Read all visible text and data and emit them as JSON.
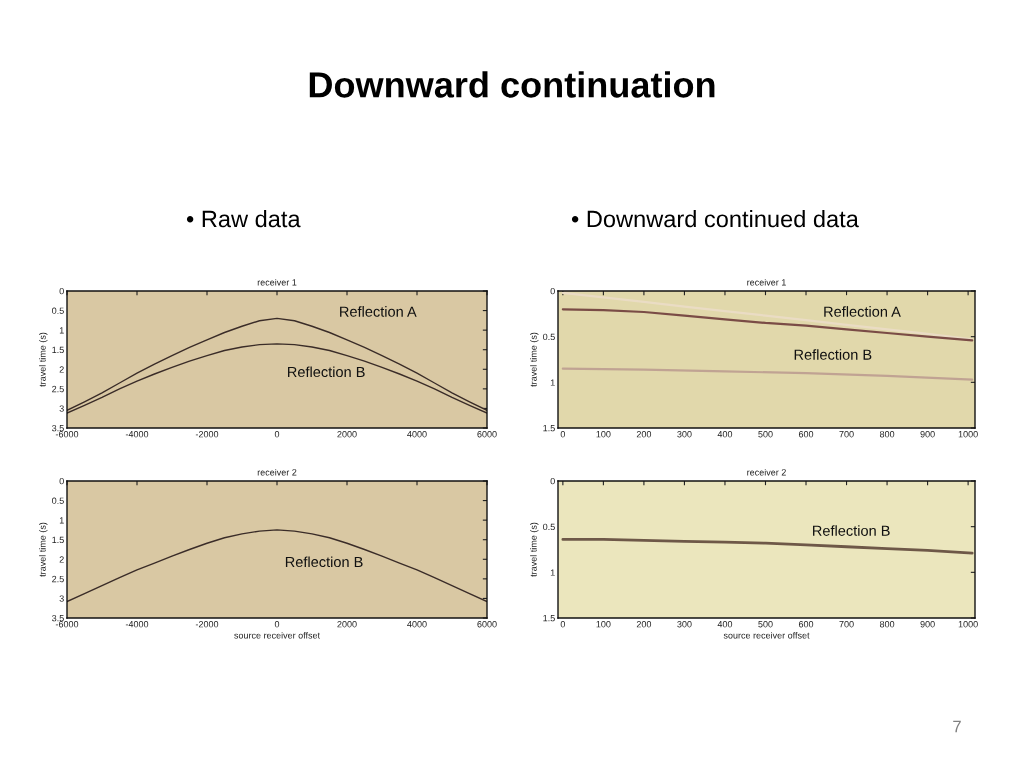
{
  "chart_data": [
    {
      "type": "line",
      "title": "receiver 1",
      "ylabel": "travel time (s)",
      "xlim": [
        -6000,
        6000
      ],
      "xticks": [
        -6000,
        -4000,
        -2000,
        0,
        2000,
        4000,
        6000
      ],
      "ylim": [
        3.5,
        0
      ],
      "yticks": [
        0,
        0.5,
        1,
        1.5,
        2,
        2.5,
        3,
        3.5
      ],
      "series": [
        {
          "name": "Reflection A",
          "color": "#3a2c28",
          "x": [
            -6000,
            -5500,
            -5000,
            -4500,
            -4000,
            -3500,
            -3000,
            -2500,
            -2000,
            -1500,
            -1000,
            -500,
            0,
            500,
            1000,
            1500,
            2000,
            2500,
            3000,
            3500,
            4000,
            4500,
            5000,
            5500,
            6000
          ],
          "values": [
            3.05,
            2.83,
            2.6,
            2.35,
            2.1,
            1.87,
            1.65,
            1.44,
            1.25,
            1.06,
            0.9,
            0.76,
            0.7,
            0.76,
            0.9,
            1.06,
            1.25,
            1.44,
            1.65,
            1.87,
            2.1,
            2.35,
            2.6,
            2.83,
            3.05
          ]
        },
        {
          "name": "Reflection B",
          "color": "#3a2c28",
          "x": [
            -6000,
            -5500,
            -5000,
            -4500,
            -4000,
            -3500,
            -3000,
            -2500,
            -2000,
            -1500,
            -1000,
            -500,
            0,
            500,
            1000,
            1500,
            2000,
            2500,
            3000,
            3500,
            4000,
            4500,
            5000,
            5500,
            6000
          ],
          "values": [
            3.12,
            2.92,
            2.72,
            2.5,
            2.3,
            2.12,
            1.95,
            1.79,
            1.65,
            1.52,
            1.43,
            1.37,
            1.35,
            1.37,
            1.43,
            1.52,
            1.65,
            1.79,
            1.95,
            2.12,
            2.3,
            2.5,
            2.72,
            2.92,
            3.12
          ]
        }
      ],
      "annotations": [
        "Downward continuation",
        "• Raw data"
      ]
    },
    {
      "type": "line",
      "title": "receiver 1",
      "ylabel": "travel time (s)",
      "xlim": [
        -12,
        1017
      ],
      "xticks": [
        0,
        100,
        200,
        300,
        400,
        500,
        600,
        700,
        800,
        900,
        1000
      ],
      "ylim": [
        1.5,
        0
      ],
      "yticks": [
        0,
        0.5,
        1,
        1.5
      ],
      "series": [
        {
          "color": "#eadcc4",
          "x": [
            0,
            100,
            200,
            300,
            400,
            500,
            600,
            700,
            800,
            900,
            1010
          ],
          "values": [
            0.02,
            0.07,
            0.12,
            0.17,
            0.22,
            0.27,
            0.32,
            0.37,
            0.42,
            0.47,
            0.53
          ]
        },
        {
          "name": "Reflection A",
          "color": "#7a4c46",
          "x": [
            0,
            100,
            200,
            300,
            400,
            500,
            600,
            700,
            800,
            900,
            1010
          ],
          "values": [
            0.2,
            0.21,
            0.23,
            0.27,
            0.31,
            0.35,
            0.38,
            0.42,
            0.46,
            0.5,
            0.54
          ]
        },
        {
          "name": "Reflection B",
          "color": "#c0a393",
          "x": [
            0,
            200,
            400,
            600,
            800,
            1010
          ],
          "values": [
            0.85,
            0.86,
            0.88,
            0.9,
            0.93,
            0.97
          ]
        }
      ],
      "annotations": [
        "• Downward continued data"
      ]
    },
    {
      "type": "line",
      "title": "receiver 2",
      "xlabel": "source receiver offset",
      "ylabel": "travel time (s)",
      "xlim": [
        -6000,
        6000
      ],
      "xticks": [
        -6000,
        -4000,
        -2000,
        0,
        2000,
        4000,
        6000
      ],
      "ylim": [
        3.5,
        0
      ],
      "yticks": [
        0,
        0.5,
        1,
        1.5,
        2,
        2.5,
        3,
        3.5
      ],
      "series": [
        {
          "name": "Reflection B",
          "color": "#3a2c28",
          "x": [
            -6000,
            -5500,
            -5000,
            -4500,
            -4000,
            -3500,
            -3000,
            -2500,
            -2000,
            -1500,
            -1000,
            -500,
            0,
            500,
            1000,
            1500,
            2000,
            2500,
            3000,
            3500,
            4000,
            4500,
            5000,
            5500,
            6000
          ],
          "values": [
            3.08,
            2.88,
            2.67,
            2.47,
            2.27,
            2.1,
            1.92,
            1.75,
            1.59,
            1.45,
            1.35,
            1.28,
            1.25,
            1.28,
            1.35,
            1.45,
            1.59,
            1.75,
            1.92,
            2.1,
            2.27,
            2.47,
            2.67,
            2.88,
            3.08
          ]
        }
      ]
    },
    {
      "type": "line",
      "title": "receiver 2",
      "xlabel": "source receiver offset",
      "ylabel": "travel time (s)",
      "xlim": [
        -12,
        1017
      ],
      "xticks": [
        0,
        100,
        200,
        300,
        400,
        500,
        600,
        700,
        800,
        900,
        1000
      ],
      "ylim": [
        1.5,
        0
      ],
      "yticks": [
        0,
        0.5,
        1,
        1.5
      ],
      "series": [
        {
          "name": "Reflection B",
          "color": "#6e5848",
          "x": [
            0,
            100,
            200,
            300,
            400,
            500,
            600,
            700,
            800,
            900,
            1010
          ],
          "values": [
            0.64,
            0.64,
            0.65,
            0.66,
            0.67,
            0.68,
            0.7,
            0.72,
            0.74,
            0.76,
            0.79
          ]
        }
      ],
      "annotations": [
        "7"
      ]
    }
  ]
}
